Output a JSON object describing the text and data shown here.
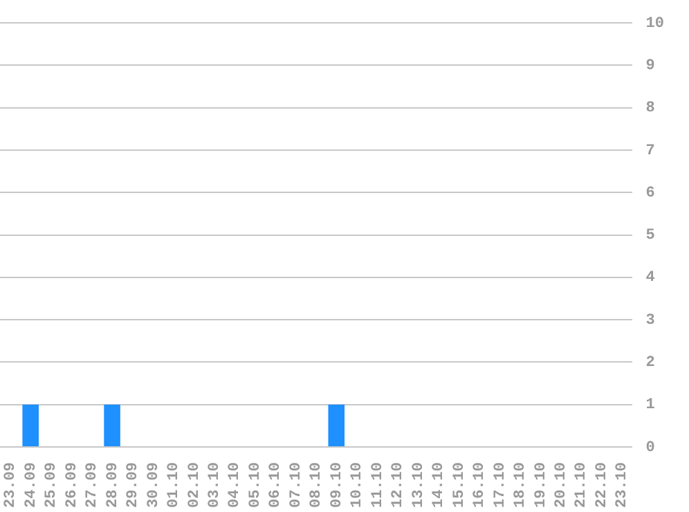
{
  "chart_data": {
    "type": "bar",
    "categories": [
      "23.09",
      "24.09",
      "25.09",
      "26.09",
      "27.09",
      "28.09",
      "29.09",
      "30.09",
      "01.10",
      "02.10",
      "03.10",
      "04.10",
      "05.10",
      "06.10",
      "07.10",
      "08.10",
      "09.10",
      "10.10",
      "11.10",
      "12.10",
      "13.10",
      "14.10",
      "15.10",
      "16.10",
      "17.10",
      "18.10",
      "19.10",
      "20.10",
      "21.10",
      "22.10",
      "23.10"
    ],
    "values": [
      0,
      1,
      0,
      0,
      0,
      1,
      0,
      0,
      0,
      0,
      0,
      0,
      0,
      0,
      0,
      0,
      1,
      0,
      0,
      0,
      0,
      0,
      0,
      0,
      0,
      0,
      0,
      0,
      0,
      0,
      0
    ],
    "color": "#1e90ff",
    "ylim": [
      0,
      10
    ],
    "yticks": [
      0,
      1,
      2,
      3,
      4,
      5,
      6,
      7,
      8,
      9,
      10
    ],
    "grid": "y",
    "legend": false
  }
}
